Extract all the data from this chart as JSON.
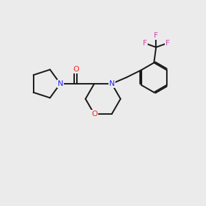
{
  "background_color": "#EBEBEB",
  "bond_color": "#1a1a1a",
  "N_color": "#2020FF",
  "O_color": "#FF2020",
  "F_color": "#CC44AA",
  "bond_width": 1.5,
  "figsize": [
    3.0,
    3.0
  ],
  "dpi": 100,
  "xlim": [
    0,
    10
  ],
  "ylim": [
    0,
    10
  ]
}
